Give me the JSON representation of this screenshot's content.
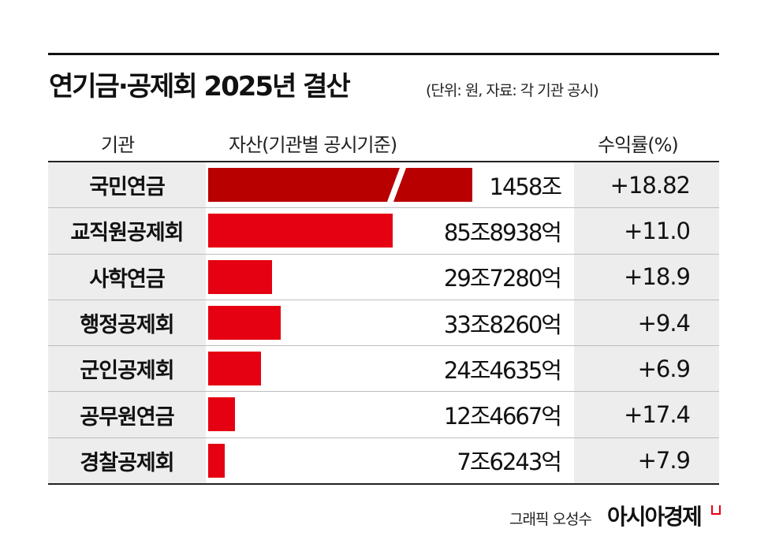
{
  "title": "연기금·공제회 2025년 결산",
  "unit_note": "(단위: 원, 자료: 각 기관 공시)",
  "headers": {
    "institution": "기관",
    "assets": "자산(기관별 공시기준)",
    "return": "수익률(%)"
  },
  "chart_data": {
    "type": "bar",
    "orientation": "horizontal",
    "title": "연기금·공제회 2025년 결산",
    "unit": "원",
    "categories": [
      "국민연금",
      "교직원공제회",
      "사학연금",
      "행정공제회",
      "군인공제회",
      "공무원연금",
      "경찰공제회"
    ],
    "asset_labels": [
      "1458조",
      "85조8938억",
      "29조7280억",
      "33조8260억",
      "24조4635억",
      "12조4667억",
      "7조6243억"
    ],
    "asset_values_jo": [
      1458,
      85.8938,
      29.728,
      33.826,
      24.4635,
      12.4667,
      7.6243
    ],
    "return_labels": [
      "+18.82",
      "+11.0",
      "+18.9",
      "+9.4",
      "+6.9",
      "+17.4",
      "+7.9"
    ],
    "return_values": [
      18.82,
      11.0,
      18.9,
      9.4,
      6.9,
      17.4,
      7.9
    ],
    "axis_break": "국민연금",
    "colors": {
      "bar": "#e50012",
      "bar_highlight": "#b80000",
      "label_bg": "#ededed"
    }
  },
  "footer": {
    "credit": "그래픽 오성수",
    "logo": "아시아경제"
  }
}
